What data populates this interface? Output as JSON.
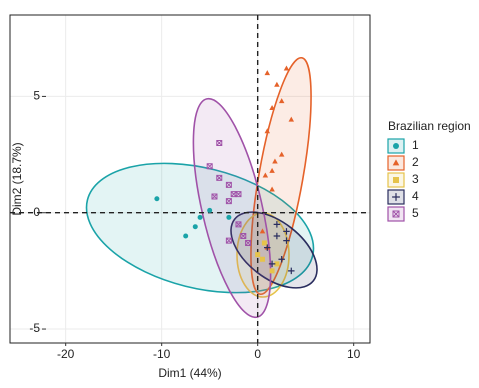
{
  "chart_data": {
    "type": "scatter",
    "x_label": "Dim1 (44%)",
    "y_label": "Dim2 (18.7%)",
    "xlim": [
      -25.8,
      11.7
    ],
    "ylim": [
      -5.6,
      8.5
    ],
    "xticks": [
      -20,
      -10,
      0,
      10
    ],
    "yticks": [
      -5,
      0,
      5
    ],
    "grid": true,
    "vline": 0,
    "hline": 0,
    "legend_title": "Brazilian region",
    "legend_position": "right",
    "series": [
      {
        "name": "1",
        "color": "#1aa3a8",
        "shape": "circle",
        "x": [
          -10.5,
          -7.5,
          -6,
          -5,
          -3,
          -6.5
        ],
        "values": [
          0.6,
          -1,
          -0.2,
          0.1,
          -0.2,
          -0.6
        ]
      },
      {
        "name": "2",
        "color": "#e5622a",
        "shape": "triangle",
        "x": [
          1,
          2,
          3,
          1.5,
          2.5,
          3.5,
          1,
          1.8,
          1.5,
          2.5,
          0.8,
          1.5,
          0.5,
          1
        ],
        "values": [
          6,
          5.5,
          6.2,
          4.5,
          4.8,
          4,
          3.5,
          2.2,
          1.8,
          2.5,
          1.6,
          1,
          -0.8,
          -1.5
        ]
      },
      {
        "name": "3",
        "color": "#e6c34a",
        "shape": "square",
        "x": [
          0,
          0.5,
          1.5,
          2,
          0.7
        ],
        "values": [
          -1.8,
          -2,
          -2.5,
          -2.2,
          -1.3
        ]
      },
      {
        "name": "4",
        "color": "#2a2d5e",
        "shape": "plus",
        "x": [
          1,
          2,
          3,
          2.5,
          3.5,
          1.5,
          3,
          2
        ],
        "values": [
          -1.5,
          -1,
          -1.2,
          -2,
          -2.5,
          -2.2,
          -0.8,
          -0.5
        ]
      },
      {
        "name": "5",
        "color": "#a052a8",
        "shape": "square-x",
        "x": [
          -4,
          -5,
          -4,
          -3,
          -2.5,
          -4.5,
          -3,
          -2,
          -1.5,
          -3,
          -1,
          -2
        ],
        "values": [
          3,
          2,
          1.5,
          1.2,
          0.8,
          0.7,
          0.5,
          -0.5,
          -1,
          -1.2,
          -1.3,
          0.8
        ]
      }
    ]
  }
}
